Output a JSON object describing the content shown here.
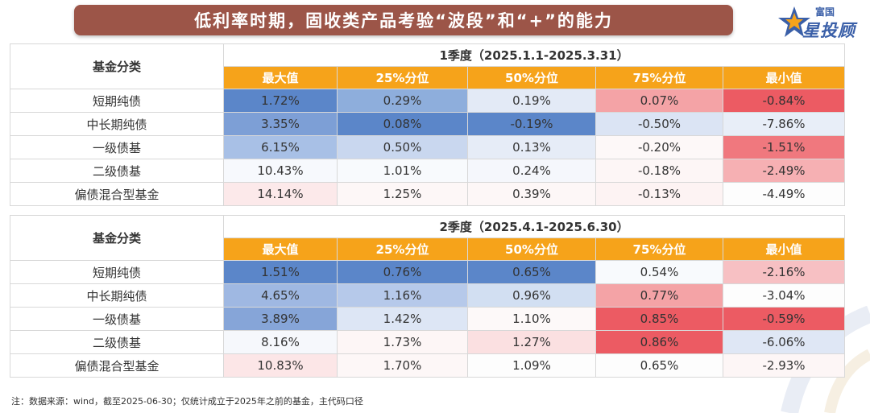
{
  "title": "低利率时期，固收类产品考验“波段”和“+”的能力",
  "logo": {
    "top_text": "富国",
    "main_text": "星投顾"
  },
  "columns": [
    "最大值",
    "25%分位",
    "50%分位",
    "75%分位",
    "最小值"
  ],
  "category_header": "基金分类",
  "tables": [
    {
      "period": "1季度（2025.1.1-2025.3.31）",
      "rows": [
        {
          "label": "短期纯债",
          "values": [
            "1.72%",
            "0.29%",
            "0.19%",
            "0.07%",
            "-0.84%"
          ],
          "colors": [
            "#5b86c9",
            "#8eaedc",
            "#e3eaf6",
            "#f4a3a6",
            "#ec5b63"
          ]
        },
        {
          "label": "中长期纯债",
          "values": [
            "3.35%",
            "0.08%",
            "-0.19%",
            "-0.50%",
            "-7.86%"
          ],
          "colors": [
            "#7d9fd6",
            "#5b86c9",
            "#5b86c9",
            "#dbe4f4",
            "#e8eef8"
          ]
        },
        {
          "label": "一级债基",
          "values": [
            "6.15%",
            "0.50%",
            "0.13%",
            "-0.20%",
            "-1.51%"
          ],
          "colors": [
            "#a8c0e6",
            "#c9d7ef",
            "#e6ecf7",
            "#fdf8f8",
            "#f0787e"
          ]
        },
        {
          "label": "二级债基",
          "values": [
            "10.43%",
            "1.01%",
            "0.24%",
            "-0.18%",
            "-2.49%"
          ],
          "colors": [
            "#f7f9fd",
            "#f8fafd",
            "#f5f7fc",
            "#fdf6f6",
            "#f6b0b3"
          ]
        },
        {
          "label": "偏债混合型基金",
          "values": [
            "14.14%",
            "1.25%",
            "0.39%",
            "-0.13%",
            "-4.49%"
          ],
          "colors": [
            "#fce9ea",
            "#fdf7f7",
            "#fdf7f7",
            "#fdf3f3",
            "#fdfdfd"
          ]
        }
      ]
    },
    {
      "period": "2季度（2025.4.1-2025.6.30）",
      "rows": [
        {
          "label": "短期纯债",
          "values": [
            "1.51%",
            "0.76%",
            "0.65%",
            "0.54%",
            "-2.16%"
          ],
          "colors": [
            "#5b86c9",
            "#5b86c9",
            "#5b86c9",
            "#f8fafd",
            "#f7c0c3"
          ]
        },
        {
          "label": "中长期纯债",
          "values": [
            "4.65%",
            "1.16%",
            "0.96%",
            "0.77%",
            "-3.04%"
          ],
          "colors": [
            "#9fb8e2",
            "#b6c9ea",
            "#d2dff2",
            "#f4a3a6",
            "#fdfdfd"
          ]
        },
        {
          "label": "一级债基",
          "values": [
            "3.89%",
            "1.42%",
            "1.10%",
            "0.85%",
            "-0.59%"
          ],
          "colors": [
            "#86a5d8",
            "#dde6f5",
            "#fdf9f9",
            "#ec5b63",
            "#ec5b63"
          ]
        },
        {
          "label": "二级债基",
          "values": [
            "8.16%",
            "1.73%",
            "1.27%",
            "0.86%",
            "-6.06%"
          ],
          "colors": [
            "#f6f8fc",
            "#fdf6f6",
            "#fbe0e1",
            "#ec5b63",
            "#dfe7f5"
          ]
        },
        {
          "label": "偏债混合型基金",
          "values": [
            "10.83%",
            "1.70%",
            "1.09%",
            "0.65%",
            "-2.93%"
          ],
          "colors": [
            "#fce6e7",
            "#fdf7f7",
            "#fdfdfd",
            "#fdfdfd",
            "#fdf6f6"
          ]
        }
      ]
    }
  ],
  "note": "注：数据来源：wind，截至2025-06-30；仅统计成立于2025年之前的基金，主代码口径"
}
